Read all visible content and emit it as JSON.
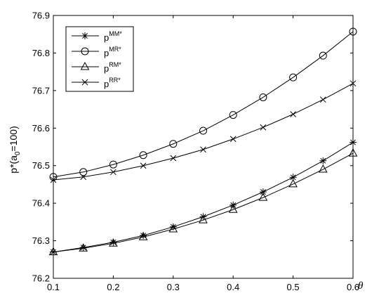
{
  "chart_data": {
    "type": "line",
    "ylabel": "p*(a",
    "ylabel_sub": "0",
    "ylabel_tail": "=100)",
    "xlabel": "θ",
    "xlim": [
      0.1,
      0.6
    ],
    "ylim": [
      76.2,
      76.9
    ],
    "x_ticks": [
      "0.1",
      "0.2",
      "0.3",
      "0.4",
      "0.5",
      "0.6"
    ],
    "y_ticks": [
      "76.2",
      "76.3",
      "76.4",
      "76.5",
      "76.6",
      "76.7",
      "76.8",
      "76.9"
    ],
    "grid": false,
    "legend_position": "top-left",
    "x": [
      0.1,
      0.15,
      0.2,
      0.25,
      0.3,
      0.35,
      0.4,
      0.45,
      0.5,
      0.55,
      0.6
    ],
    "series": [
      {
        "name": "p",
        "sup": "MM*",
        "marker": "asterisk",
        "values": [
          76.27,
          76.282,
          76.296,
          76.314,
          76.337,
          76.364,
          76.395,
          76.43,
          76.469,
          76.513,
          76.562
        ]
      },
      {
        "name": "p",
        "sup": "MR*",
        "marker": "circle",
        "values": [
          76.47,
          76.483,
          76.503,
          76.528,
          76.558,
          76.593,
          76.635,
          76.682,
          76.735,
          76.793,
          76.857
        ]
      },
      {
        "name": "p",
        "sup": "RM*",
        "marker": "triangle",
        "values": [
          76.27,
          76.28,
          76.293,
          76.31,
          76.331,
          76.355,
          76.383,
          76.415,
          76.451,
          76.49,
          76.533
        ]
      },
      {
        "name": "p",
        "sup": "RR*",
        "marker": "x",
        "values": [
          76.462,
          76.47,
          76.483,
          76.5,
          76.52,
          76.543,
          76.571,
          76.602,
          76.637,
          76.676,
          76.719
        ]
      }
    ]
  }
}
